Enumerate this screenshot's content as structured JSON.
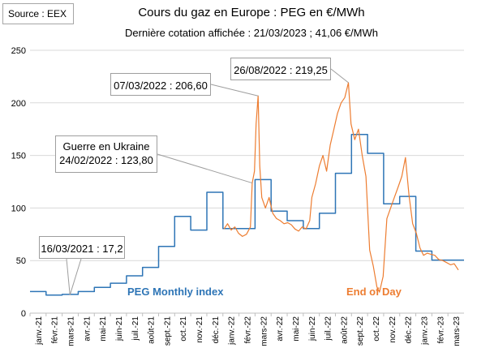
{
  "source": "Source : EEX",
  "chart_data": {
    "type": "line",
    "title": "Cours du gaz en Europe : PEG en €/MWh",
    "subtitle": "Dernière cotation affichée : 21/03/2023 ; 41,06 €/MWh",
    "ylim": [
      0,
      250
    ],
    "yticks": [
      0,
      50,
      100,
      150,
      200,
      250
    ],
    "grid": true,
    "x_categories": [
      "janv.-21",
      "févr.-21",
      "mars-21",
      "avr.-21",
      "mai-21",
      "juin-21",
      "juil.-21",
      "août-21",
      "sept.-21",
      "oct.-21",
      "nov.-21",
      "déc.-21",
      "janv.-22",
      "févr.-22",
      "mars-22",
      "avr.-22",
      "mai-22",
      "juin-22",
      "juil.-22",
      "août-22",
      "sept.-22",
      "oct.-22",
      "nov.-22",
      "déc.-22",
      "janv.-23",
      "févr.-23",
      "mars-23"
    ],
    "series": [
      {
        "name": "PEG Monthly index",
        "color": "#2e75b6",
        "step": true,
        "x": [
          "2021-01",
          "2021-02",
          "2021-03",
          "2021-04",
          "2021-05",
          "2021-06",
          "2021-07",
          "2021-08",
          "2021-09",
          "2021-10",
          "2021-11",
          "2021-12",
          "2022-01",
          "2022-02",
          "2022-03",
          "2022-04",
          "2022-05",
          "2022-06",
          "2022-07",
          "2022-08",
          "2022-09",
          "2022-10",
          "2022-11",
          "2022-12",
          "2023-01",
          "2023-02",
          "2023-03"
        ],
        "values": [
          20.5,
          17.2,
          17.8,
          20.5,
          24.5,
          28.5,
          35.5,
          43.5,
          63.5,
          92,
          79,
          115,
          80.5,
          80.5,
          127,
          97,
          88,
          80.5,
          95,
          133,
          170,
          152,
          104,
          111,
          59,
          50.5,
          50.5
        ]
      },
      {
        "name": "End of Day",
        "color": "#ed7d31",
        "step": false,
        "x": [
          "2022-01-03",
          "2022-01-10",
          "2022-01-17",
          "2022-01-24",
          "2022-01-31",
          "2022-02-07",
          "2022-02-14",
          "2022-02-21",
          "2022-02-24",
          "2022-02-28",
          "2022-03-03",
          "2022-03-07",
          "2022-03-10",
          "2022-03-14",
          "2022-03-21",
          "2022-03-28",
          "2022-04-04",
          "2022-04-11",
          "2022-04-18",
          "2022-04-25",
          "2022-05-02",
          "2022-05-09",
          "2022-05-16",
          "2022-05-23",
          "2022-05-30",
          "2022-06-06",
          "2022-06-13",
          "2022-06-17",
          "2022-06-24",
          "2022-07-01",
          "2022-07-08",
          "2022-07-15",
          "2022-07-22",
          "2022-07-29",
          "2022-08-05",
          "2022-08-12",
          "2022-08-19",
          "2022-08-26",
          "2022-08-31",
          "2022-09-07",
          "2022-09-14",
          "2022-09-21",
          "2022-09-28",
          "2022-10-05",
          "2022-10-12",
          "2022-10-19",
          "2022-10-24",
          "2022-10-31",
          "2022-11-07",
          "2022-11-14",
          "2022-11-21",
          "2022-11-28",
          "2022-12-05",
          "2022-12-12",
          "2022-12-19",
          "2022-12-26",
          "2023-01-02",
          "2023-01-09",
          "2023-01-16",
          "2023-01-23",
          "2023-01-30",
          "2023-02-06",
          "2023-02-13",
          "2023-02-20",
          "2023-02-27",
          "2023-03-06",
          "2023-03-13",
          "2023-03-21"
        ],
        "values": [
          80,
          85,
          79,
          82,
          76,
          73,
          75,
          82,
          123.8,
          135,
          180,
          206.6,
          140,
          110,
          100,
          110,
          95,
          90,
          88,
          85,
          86,
          84,
          80,
          78,
          82,
          80,
          88,
          110,
          123,
          140,
          150,
          135,
          160,
          175,
          190,
          200,
          205,
          219.25,
          180,
          165,
          175,
          150,
          130,
          60,
          45,
          25,
          20,
          35,
          90,
          100,
          110,
          120,
          130,
          148,
          112,
          85,
          76,
          62,
          55,
          57,
          56,
          55,
          51,
          50,
          48,
          46,
          47,
          41.06
        ]
      }
    ],
    "annotations": [
      {
        "lines": [
          "16/03/2021 : 17,2"
        ],
        "x": "2021-03-16",
        "y": 17.2
      },
      {
        "lines": [
          "Guerre en Ukraine",
          "24/02/2022 : 123,80"
        ],
        "x": "2022-02-24",
        "y": 123.8
      },
      {
        "lines": [
          "07/03/2022 : 206,60"
        ],
        "x": "2022-03-07",
        "y": 206.6
      },
      {
        "lines": [
          "26/08/2022 : 219,25"
        ],
        "x": "2022-08-26",
        "y": 219.25
      }
    ]
  }
}
